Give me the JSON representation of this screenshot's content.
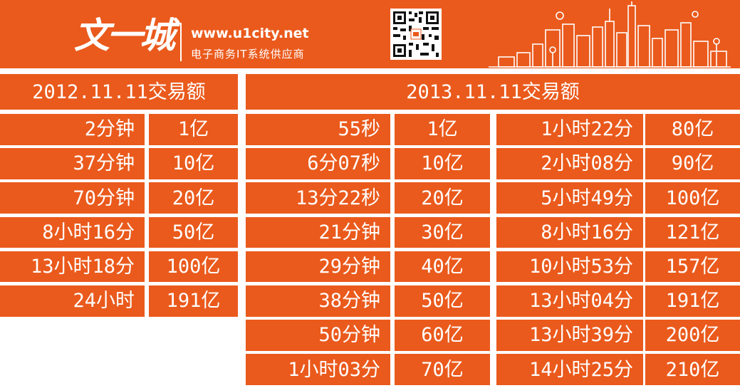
{
  "header": {
    "logo_text": "文一城",
    "url": "www.u1city.net",
    "slogan": "电子商务IT系统供应商"
  },
  "icons": {
    "qr": "qr-code-icon",
    "skyline": "city-skyline-illustration"
  },
  "colors": {
    "accent": "#ea5a1c",
    "background": "#ffffff",
    "text": "#ffffff"
  },
  "table_2012": {
    "title": "2012.11.11交易额",
    "rows": [
      {
        "time": "2分钟",
        "amount": "1亿"
      },
      {
        "time": "37分钟",
        "amount": "10亿"
      },
      {
        "time": "70分钟",
        "amount": "20亿"
      },
      {
        "time": "8小时16分",
        "amount": "50亿"
      },
      {
        "time": "13小时18分",
        "amount": "100亿"
      },
      {
        "time": "24小时",
        "amount": "191亿"
      }
    ]
  },
  "table_2013": {
    "title": "2013.11.11交易额",
    "left_rows": [
      {
        "time": "55秒",
        "amount": "1亿"
      },
      {
        "time": "6分07秒",
        "amount": "10亿"
      },
      {
        "time": "13分22秒",
        "amount": "20亿"
      },
      {
        "time": "21分钟",
        "amount": "30亿"
      },
      {
        "time": "29分钟",
        "amount": "40亿"
      },
      {
        "time": "38分钟",
        "amount": "50亿"
      },
      {
        "time": "50分钟",
        "amount": "60亿"
      },
      {
        "time": "1小时03分",
        "amount": "70亿"
      }
    ],
    "right_rows": [
      {
        "time": "1小时22分",
        "amount": "80亿"
      },
      {
        "time": "2小时08分",
        "amount": "90亿"
      },
      {
        "time": "5小时49分",
        "amount": "100亿"
      },
      {
        "time": "8小时16分",
        "amount": "121亿"
      },
      {
        "time": "10小时53分",
        "amount": "157亿"
      },
      {
        "time": "13小时04分",
        "amount": "191亿"
      },
      {
        "time": "13小时39分",
        "amount": "200亿"
      },
      {
        "time": "14小时25分",
        "amount": "210亿"
      }
    ]
  }
}
